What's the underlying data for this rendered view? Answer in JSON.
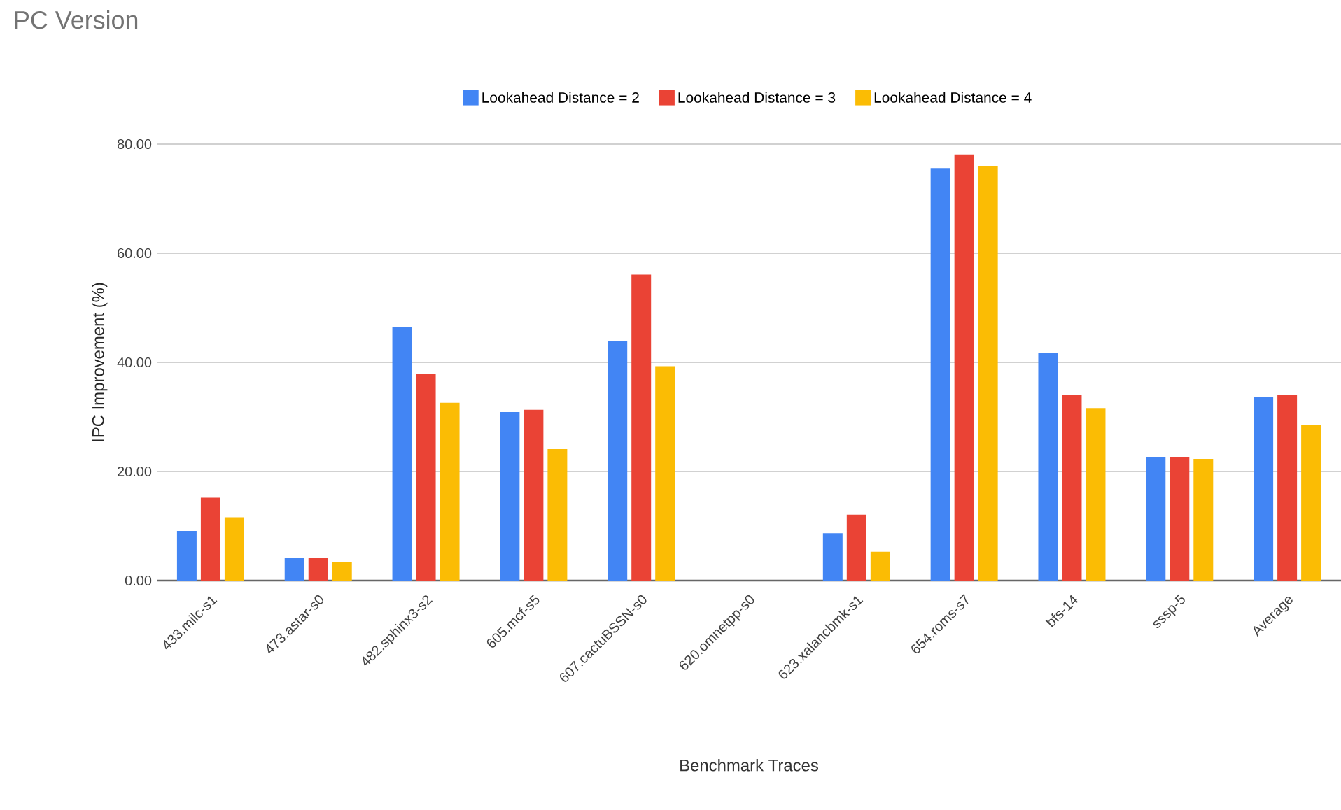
{
  "chart_data": {
    "type": "bar",
    "title": "PC Version",
    "xlabel": "Benchmark Traces",
    "ylabel": "IPC Improvement (%)",
    "categories": [
      "433.milc-s1",
      "473.astar-s0",
      "482.sphinx3-s2",
      "605.mcf-s5",
      "607.cactuBSSN-s0",
      "620.omnetpp-s0",
      "623.xalancbmk-s1",
      "654.roms-s7",
      "bfs-14",
      "sssp-5",
      "Average"
    ],
    "series": [
      {
        "name": "Lookahead Distance = 2",
        "color": "#4285f4",
        "values": [
          9.1,
          4.1,
          46.5,
          30.9,
          43.9,
          0,
          8.7,
          75.6,
          41.8,
          22.6,
          33.7
        ]
      },
      {
        "name": "Lookahead Distance = 3",
        "color": "#ea4335",
        "values": [
          15.2,
          4.1,
          37.9,
          31.3,
          56.1,
          0,
          12.1,
          78.1,
          34.0,
          22.6,
          34.0
        ]
      },
      {
        "name": "Lookahead Distance = 4",
        "color": "#fbbc04",
        "values": [
          11.6,
          3.4,
          32.6,
          24.1,
          39.3,
          0,
          5.3,
          75.9,
          31.5,
          22.3,
          28.6
        ]
      }
    ],
    "ylim": [
      0,
      80
    ],
    "yticks": [
      {
        "value": 0,
        "label": "0.00"
      },
      {
        "value": 20,
        "label": "20.00"
      },
      {
        "value": 40,
        "label": "40.00"
      },
      {
        "value": 60,
        "label": "60.00"
      },
      {
        "value": 80,
        "label": "80.00"
      }
    ],
    "grid": "y",
    "legend": "top"
  }
}
